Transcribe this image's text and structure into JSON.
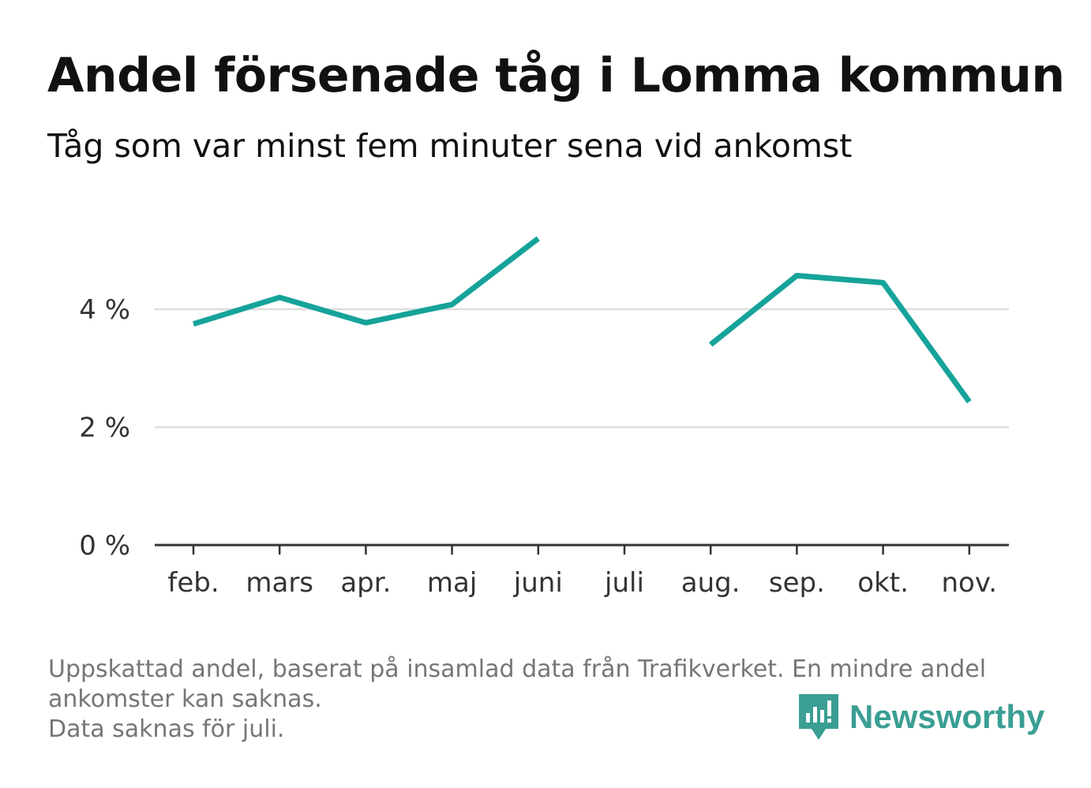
{
  "header": {
    "title": "Andel försenade tåg i Lomma kommun",
    "subtitle": "Tåg som var minst fem minuter sena vid ankomst"
  },
  "footnote": {
    "line1": "Uppskattad andel, baserat på insamlad data från Trafikverket. En mindre andel",
    "line2": "ankomster kan saknas.",
    "line3": "Data saknas för juli."
  },
  "brand": {
    "name": "Newsworthy",
    "icon": "newsworthy-logo-icon",
    "color": "#3a9e93"
  },
  "colors": {
    "line": "#16a39a",
    "grid": "#dddddd",
    "axis": "#333333"
  },
  "chart_data": {
    "type": "line",
    "categories": [
      "feb.",
      "mars",
      "apr.",
      "maj",
      "juni",
      "juli",
      "aug.",
      "sep.",
      "okt.",
      "nov."
    ],
    "series": [
      {
        "values": [
          3.75,
          4.2,
          3.77,
          4.08,
          5.2,
          null,
          3.4,
          4.57,
          4.45,
          2.43
        ]
      }
    ],
    "y_ticks": [
      0,
      2,
      4
    ],
    "y_tick_labels": [
      "0 %",
      "2 %",
      "4 %"
    ],
    "ylim": [
      0,
      6.5
    ],
    "grid": true,
    "xlabel": "",
    "ylabel": ""
  }
}
